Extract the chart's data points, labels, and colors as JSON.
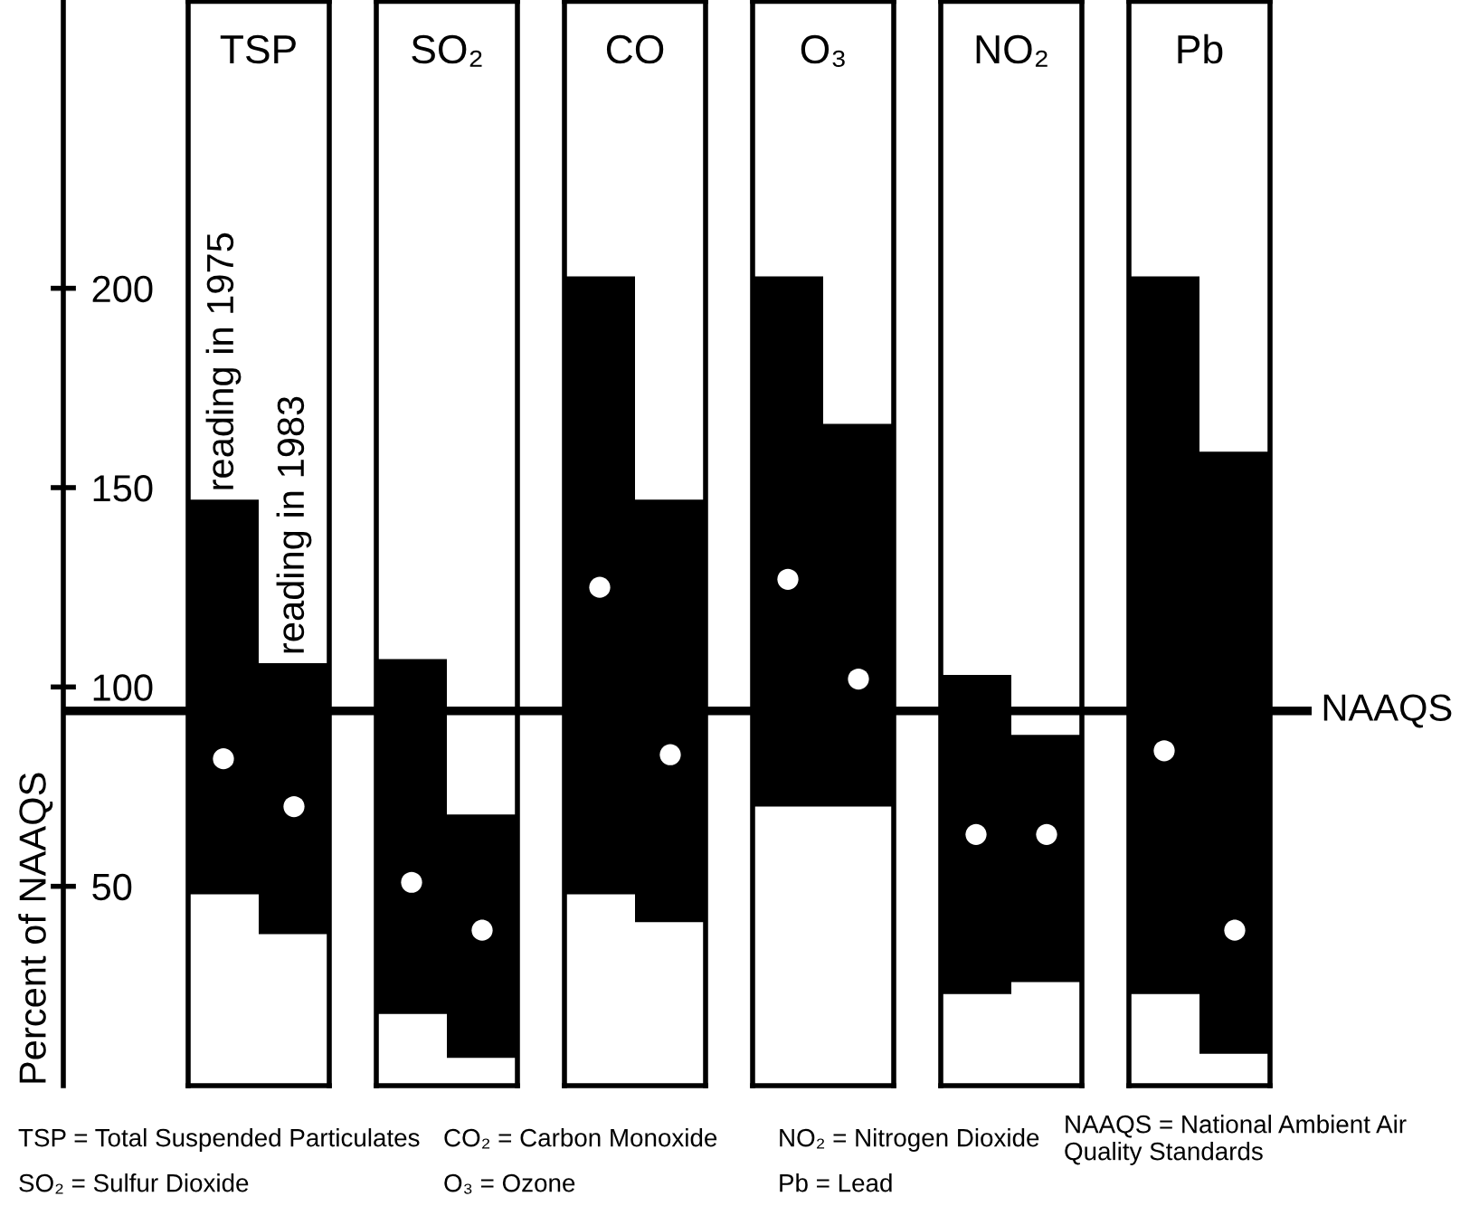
{
  "chart_data": {
    "type": "bar",
    "ylabel": "Percent of NAAQS",
    "categories": [
      "TSP",
      "SO₂",
      "CO",
      "O₃",
      "NO₂",
      "Pb"
    ],
    "ylim": [
      0,
      272
    ],
    "yticks": [
      50,
      100,
      150,
      200
    ],
    "grid": false,
    "legend": false,
    "series": [
      {
        "name": "reading in 1975",
        "color": "#000000",
        "base": [
          48,
          18,
          48,
          70,
          23,
          23
        ],
        "values": [
          99,
          89,
          155,
          133,
          80,
          180
        ]
      },
      {
        "name": "reading in 1983",
        "color": "#000000",
        "base": [
          38,
          7,
          41,
          70,
          26,
          8
        ],
        "values": [
          68,
          61,
          106,
          96,
          62,
          151
        ]
      },
      {
        "type": "scatter",
        "color": "#ffffff",
        "marker": "circle",
        "x": [
          "TSP",
          "SO₂",
          "CO",
          "O₃",
          "NO₂",
          "Pb"
        ],
        "values": [
          82,
          51,
          125,
          127,
          63,
          84
        ]
      },
      {
        "type": "scatter",
        "color": "#ffffff",
        "marker": "circle",
        "x": [
          "TSP",
          "SO₂",
          "CO",
          "O₃",
          "NO₂",
          "Pb"
        ],
        "values": [
          70,
          39,
          83,
          102,
          63,
          39
        ]
      }
    ],
    "ref_lines": [
      {
        "axis": "y",
        "value": 94,
        "label": "NAAQS",
        "color": "#000000",
        "line_style": "solid"
      }
    ],
    "annotations": [
      "TSP = Total Suspended Particulates",
      "SO₂ = Sulfur Dioxide",
      "CO₂ = Carbon Monoxide",
      "O₃ = Ozone",
      "NO₂ = Nitrogen Dioxide",
      "Pb = Lead",
      "NAAQS = National Ambient Air Quality Standards"
    ]
  }
}
